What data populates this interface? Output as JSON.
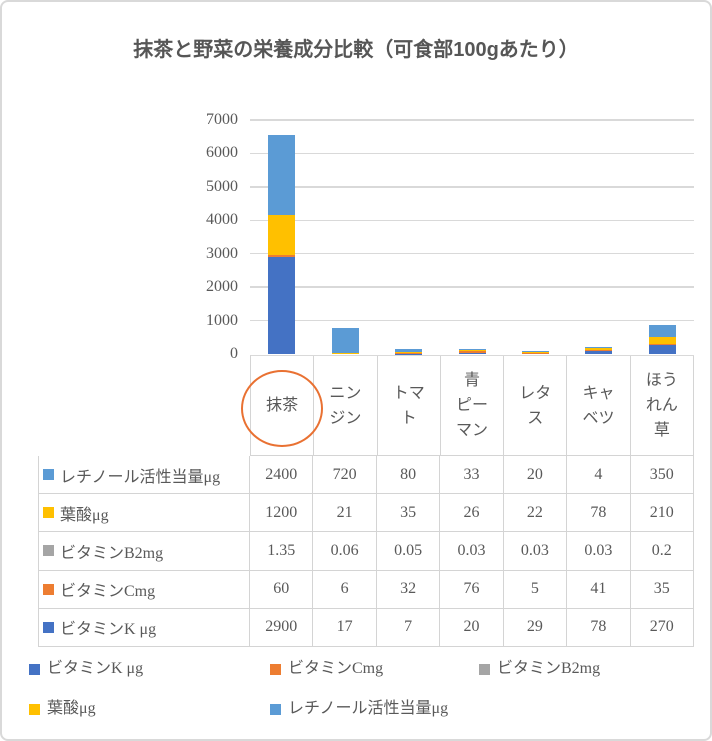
{
  "title": "抹茶と野菜の栄養成分比較（可食部100gあたり）",
  "chart_data": {
    "type": "bar",
    "subtype": "stacked",
    "title": "抹茶と野菜の栄養成分比較（可食部100gあたり）",
    "categories": [
      "抹茶",
      "ニンジン",
      "トマト",
      "青ピーマン",
      "レタス",
      "キャベツ",
      "ほうれん草"
    ],
    "category_label_lines": [
      [
        "抹茶"
      ],
      [
        "ニン",
        "ジン"
      ],
      [
        "トマ",
        "ト"
      ],
      [
        "青",
        "ピー",
        "マン"
      ],
      [
        "レタ",
        "ス"
      ],
      [
        "キャ",
        "ベツ"
      ],
      [
        "ほう",
        "れん",
        "草"
      ]
    ],
    "series": [
      {
        "name": "ビタミンK μg",
        "color": "#4472C4",
        "values": [
          2900,
          17,
          7,
          20,
          29,
          78,
          270
        ]
      },
      {
        "name": "ビタミンCmg",
        "color": "#ED7D31",
        "values": [
          60,
          6,
          32,
          76,
          5,
          41,
          35
        ]
      },
      {
        "name": "ビタミンB2mg",
        "color": "#A5A5A5",
        "values": [
          1.35,
          0.06,
          0.05,
          0.03,
          0.03,
          0.03,
          0.2
        ]
      },
      {
        "name": "葉酸μg",
        "color": "#FFC000",
        "values": [
          1200,
          21,
          35,
          26,
          22,
          78,
          210
        ]
      },
      {
        "name": "レチノール活性当量μg",
        "color": "#5B9BD5",
        "values": [
          2400,
          720,
          80,
          33,
          20,
          4,
          350
        ]
      }
    ],
    "stack_order": "bottom-to-top",
    "ylim": [
      0,
      7000
    ],
    "yticks": [
      0,
      1000,
      2000,
      3000,
      4000,
      5000,
      6000,
      7000
    ],
    "grid": true,
    "legend_position": "bottom"
  },
  "data_table": {
    "rows": [
      {
        "label": "レチノール活性当量μg",
        "color": "#5B9BD5",
        "values": [
          "2400",
          "720",
          "80",
          "33",
          "20",
          "4",
          "350"
        ]
      },
      {
        "label": "葉酸μg",
        "color": "#FFC000",
        "values": [
          "1200",
          "21",
          "35",
          "26",
          "22",
          "78",
          "210"
        ]
      },
      {
        "label": "ビタミンB2mg",
        "color": "#A5A5A5",
        "values": [
          "1.35",
          "0.06",
          "0.05",
          "0.03",
          "0.03",
          "0.03",
          "0.2"
        ]
      },
      {
        "label": "ビタミンCmg",
        "color": "#ED7D31",
        "values": [
          "60",
          "6",
          "32",
          "76",
          "5",
          "41",
          "35"
        ]
      },
      {
        "label": "ビタミンK μg",
        "color": "#4472C4",
        "values": [
          "2900",
          "17",
          "7",
          "20",
          "29",
          "78",
          "270"
        ]
      }
    ]
  },
  "legend": {
    "items": [
      {
        "label": "ビタミンK μg",
        "color": "#4472C4"
      },
      {
        "label": "ビタミンCmg",
        "color": "#ED7D31"
      },
      {
        "label": "ビタミンB2mg",
        "color": "#A5A5A5"
      },
      {
        "label": "葉酸μg",
        "color": "#FFC000"
      },
      {
        "label": "レチノール活性当量μg",
        "color": "#5B9BD5"
      }
    ]
  },
  "annotation": {
    "shape": "ellipse",
    "target_category": "抹茶",
    "color": "#E97132"
  },
  "colors": {
    "axis_text": "#595959",
    "grid": "#D9D9D9",
    "table_border": "#D4D4D4",
    "title_text": "#565656"
  }
}
